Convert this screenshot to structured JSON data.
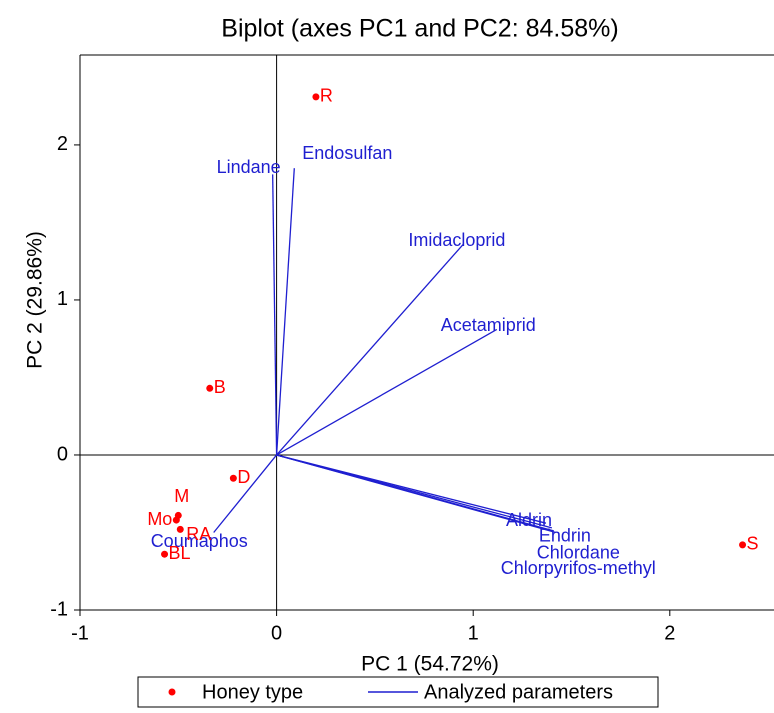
{
  "chart_data": {
    "type": "biplot",
    "title": "Biplot (axes PC1 and PC2: 84.58%)",
    "x_label": "PC 1 (54.72%)",
    "y_label": "PC 2 (29.86%)",
    "xlim": [
      -1,
      2.53
    ],
    "ylim": [
      -1,
      2.58
    ],
    "xticks": [
      -1,
      0,
      1,
      2
    ],
    "yticks": [
      -1,
      0,
      1,
      2
    ],
    "series": [
      {
        "name": "Honey type",
        "color": "#ff0000",
        "labels": [
          "R",
          "B",
          "D",
          "M",
          "Mo",
          "RA",
          "BL",
          "S"
        ],
        "x": [
          0.2,
          -0.34,
          -0.22,
          -0.5,
          -0.51,
          -0.49,
          -0.57,
          2.37
        ],
        "values": [
          2.31,
          0.43,
          -0.15,
          -0.39,
          -0.42,
          -0.48,
          -0.64,
          -0.58
        ]
      },
      {
        "name": "Analyzed parameters",
        "color": "#1f1fd0",
        "labels": [
          "Lindane",
          "Endosulfan",
          "Imidacloprid",
          "Acetamiprid",
          "Aldrin",
          "Endrin",
          "Chlordane",
          "Chlorpyrifos-methyl",
          "Coumaphos"
        ],
        "x": [
          -0.02,
          0.09,
          0.95,
          1.12,
          1.37,
          1.4,
          1.41,
          1.42,
          -0.32
        ],
        "values": [
          1.81,
          1.85,
          1.36,
          0.81,
          -0.44,
          -0.47,
          -0.49,
          -0.5,
          -0.5
        ]
      }
    ]
  }
}
